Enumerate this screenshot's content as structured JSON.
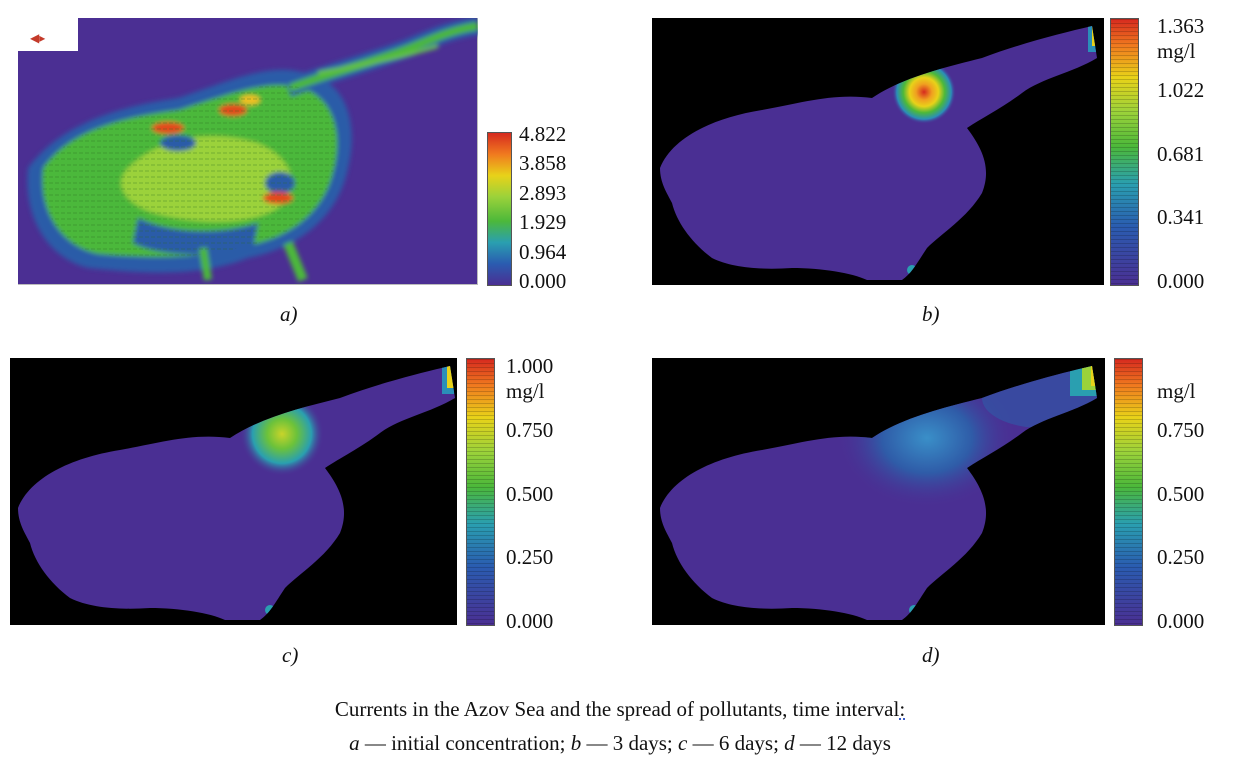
{
  "figure": {
    "panel_a": {
      "label": "a)",
      "colorbar": {
        "ticks": [
          "4.822",
          "3.858",
          "2.893",
          "1.929",
          "0.964",
          "0.000"
        ],
        "unit": ""
      }
    },
    "panel_b": {
      "label": "b)",
      "colorbar": {
        "ticks": [
          "1.363",
          "1.022",
          "0.681",
          "0.341",
          "0.000"
        ],
        "unit": "mg/l"
      }
    },
    "panel_c": {
      "label": "c)",
      "colorbar": {
        "ticks": [
          "1.000",
          "0.750",
          "0.500",
          "0.250",
          "0.000"
        ],
        "unit": "mg/l"
      }
    },
    "panel_d": {
      "label": "d)",
      "colorbar": {
        "ticks": [
          "0.750",
          "0.500",
          "0.250",
          "0.000"
        ],
        "unit": "mg/l"
      }
    },
    "caption": {
      "line1_main": "Currents in the Azov Sea and the spread of pollutants, time interval",
      "line1_end": ":",
      "line2": [
        {
          "letter": "a",
          "text": " — initial concentration; "
        },
        {
          "letter": "b",
          "text": " — 3 days; "
        },
        {
          "letter": "c",
          "text": " — 6 days; "
        },
        {
          "letter": "d",
          "text": " — 12 days"
        }
      ]
    },
    "colors": {
      "background_dark": "#000000",
      "sea_low": "#4a2f93",
      "plume_high": "#d62a1f",
      "plume_mid": "#e8d219",
      "green": "#5cc33a",
      "blue": "#2a6fb8"
    }
  }
}
